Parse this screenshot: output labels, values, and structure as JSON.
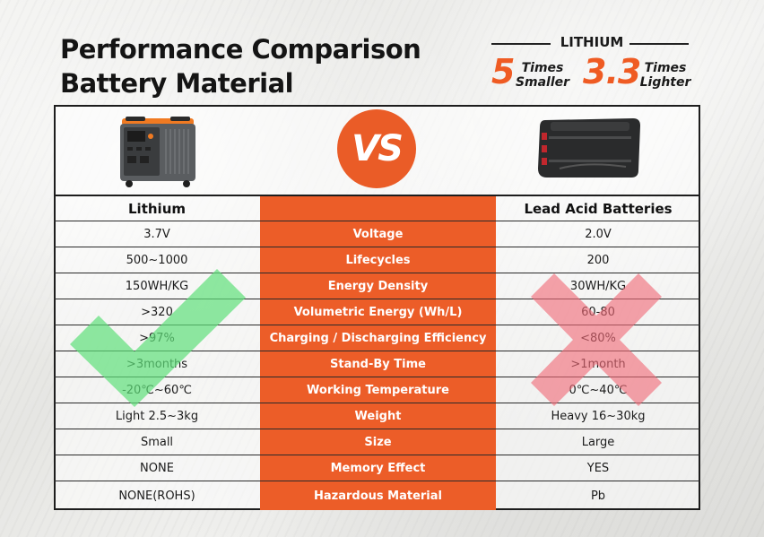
{
  "title": {
    "line1": "Performance Comparison",
    "line2": "Battery Material"
  },
  "badge": {
    "heading": "LITHIUM",
    "size_value": "5",
    "size_caption_line1": "Times",
    "size_caption_line2": "Smaller",
    "weight_value": "3.3",
    "weight_caption_line1": "Times",
    "weight_caption_line2": "Lighter",
    "accent_color": "#ef5b23"
  },
  "vs_label": "VS",
  "columns": {
    "left": "Lithium",
    "right": "Lead Acid Batteries"
  },
  "rows": [
    {
      "left": "3.7V",
      "label": "Voltage",
      "right": "2.0V"
    },
    {
      "left": "500~1000",
      "label": "Lifecycles",
      "right": "200"
    },
    {
      "left": "150WH/KG",
      "label": "Energy Density",
      "right": "30WH/KG"
    },
    {
      "left": ">320",
      "label": "Volumetric Energy (Wh/L)",
      "right": "60-80"
    },
    {
      "left": ">97%",
      "label": "Charging / Discharging Efficiency",
      "right": "<80%"
    },
    {
      "left": ">3months",
      "label": "Stand-By Time",
      "right": ">1month"
    },
    {
      "left": "-20℃~60℃",
      "label": "Working Temperature",
      "right": "0℃~40℃"
    },
    {
      "left": "Light 2.5~3kg",
      "label": "Weight",
      "right": "Heavy 16~30kg"
    },
    {
      "left": "Small",
      "label": "Size",
      "right": "Large"
    },
    {
      "left": "NONE",
      "label": "Memory Effect",
      "right": "YES"
    },
    {
      "left": "NONE(ROHS)",
      "label": "Hazardous Material",
      "right": "Pb"
    }
  ],
  "icons": {
    "left_mark": "checkmark-icon",
    "right_mark": "cross-icon",
    "left_image": "portable-power-station",
    "right_image": "lead-acid-battery"
  },
  "colors": {
    "orange": "#ec5d28",
    "check_green": "#5fe07a",
    "cross_red": "#f06a78"
  }
}
